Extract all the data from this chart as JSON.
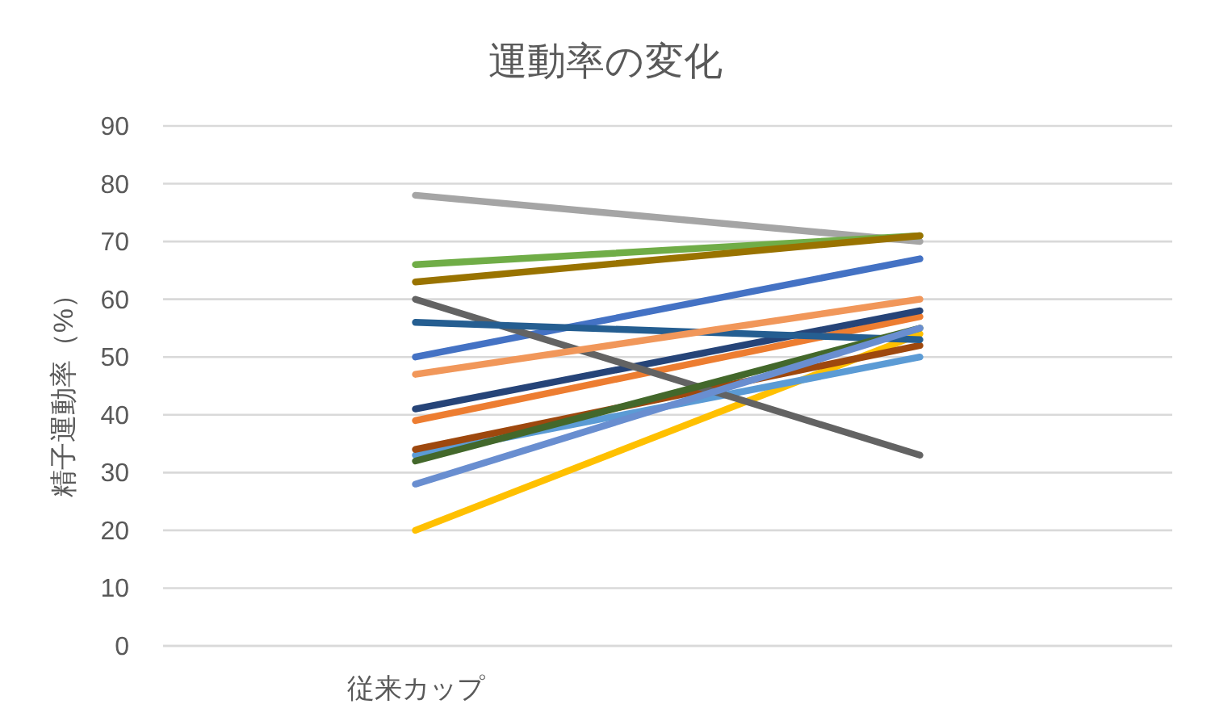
{
  "chart_data": {
    "type": "line",
    "title": "運動率の変化",
    "ylabel": "精子運動率（%）",
    "categories": [
      "従来カップ",
      null
    ],
    "series": [
      {
        "color": "#4472c4",
        "values": [
          50,
          67
        ]
      },
      {
        "color": "#ed7d31",
        "values": [
          39,
          57
        ]
      },
      {
        "color": "#a5a5a5",
        "values": [
          78,
          70
        ]
      },
      {
        "color": "#ffc000",
        "values": [
          20,
          54
        ]
      },
      {
        "color": "#5b9bd5",
        "values": [
          33,
          50
        ]
      },
      {
        "color": "#70ad47",
        "values": [
          66,
          71
        ]
      },
      {
        "color": "#264478",
        "values": [
          41,
          58
        ]
      },
      {
        "color": "#9e480e",
        "values": [
          34,
          52
        ]
      },
      {
        "color": "#636363",
        "values": [
          60,
          33
        ]
      },
      {
        "color": "#997300",
        "values": [
          63,
          71
        ]
      },
      {
        "color": "#255e91",
        "values": [
          56,
          53
        ]
      },
      {
        "color": "#43682b",
        "values": [
          32,
          55
        ]
      },
      {
        "color": "#698ed0",
        "values": [
          28,
          55
        ]
      },
      {
        "color": "#f1975a",
        "values": [
          47,
          60
        ]
      }
    ],
    "ylim": [
      0,
      90
    ],
    "yticks": [
      0,
      10,
      20,
      30,
      40,
      50,
      60,
      70,
      80,
      90
    ],
    "grid": "y",
    "line_style": "solid"
  }
}
